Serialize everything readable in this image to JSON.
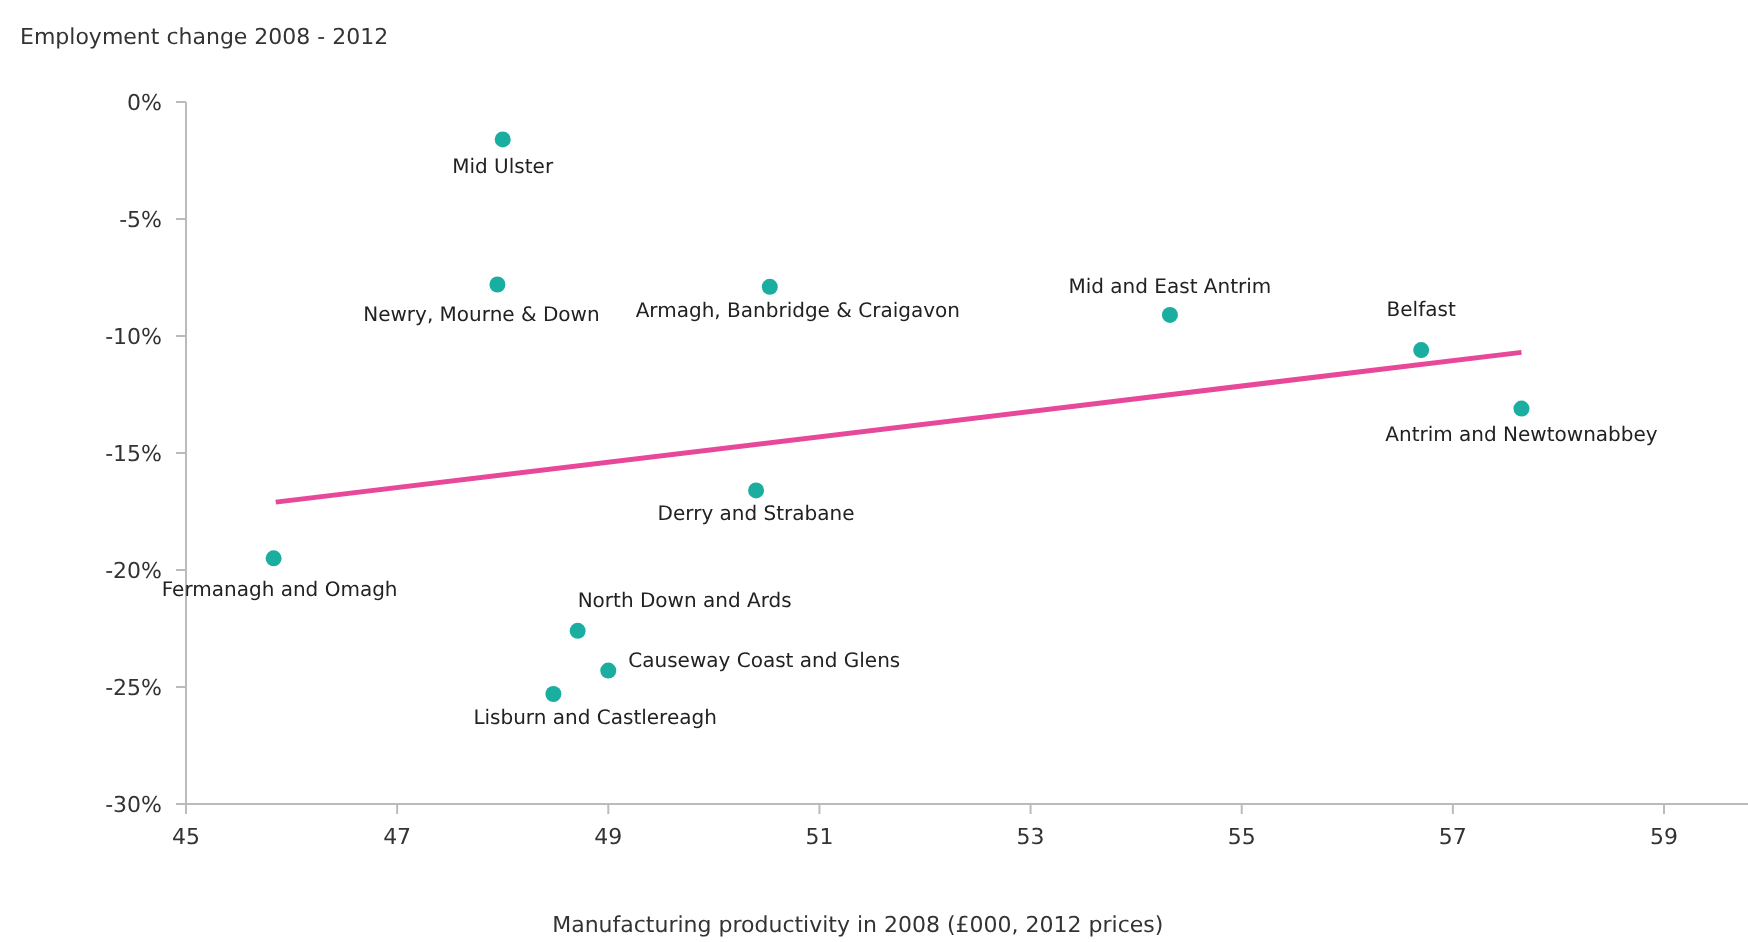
{
  "chart_data": {
    "type": "scatter",
    "ylabel": "Employment change 2008 - 2012",
    "xlabel": "Manufacturing productivity in 2008 (£000, 2012 prices)",
    "xlim": [
      45,
      60
    ],
    "xticks": [
      45,
      47,
      49,
      51,
      53,
      55,
      57,
      59
    ],
    "ylim": [
      -30,
      0
    ],
    "yticks": [
      {
        "value": 0,
        "label": "0%"
      },
      {
        "value": -5,
        "label": "-5%"
      },
      {
        "value": -10,
        "label": "-10%"
      },
      {
        "value": -15,
        "label": "-15%"
      },
      {
        "value": -20,
        "label": "-20%"
      },
      {
        "value": -25,
        "label": "-25%"
      },
      {
        "value": -30,
        "label": "-30%"
      }
    ],
    "grid": false,
    "series": [
      {
        "marker": "circle",
        "color": "#1aaea0",
        "x": [
          48.0,
          47.95,
          50.53,
          54.32,
          56.7,
          57.65,
          50.4,
          45.83,
          48.71,
          49.0,
          48.48
        ],
        "values": [
          -1.6,
          -7.8,
          -7.9,
          -9.1,
          -10.6,
          -13.1,
          -16.6,
          -19.5,
          -22.6,
          -24.3,
          -25.3
        ]
      },
      {
        "type": "line",
        "color": "#e8489a",
        "x": [
          45.85,
          57.65
        ],
        "values": [
          -17.1,
          -10.7
        ]
      }
    ],
    "annotations": [
      {
        "text": "Mid Ulster",
        "x": 48.0,
        "y": -1.6
      },
      {
        "text": "Newry, Mourne & Down",
        "x": 47.95,
        "y": -7.8
      },
      {
        "text": "Armagh, Banbridge & Craigavon",
        "x": 50.53,
        "y": -7.9
      },
      {
        "text": "Mid and East Antrim",
        "x": 54.32,
        "y": -9.1
      },
      {
        "text": "Belfast",
        "x": 56.7,
        "y": -10.6
      },
      {
        "text": "Antrim and Newtownabbey",
        "x": 57.65,
        "y": -13.1
      },
      {
        "text": "Derry and Strabane",
        "x": 50.4,
        "y": -16.6
      },
      {
        "text": "Fermanagh and Omagh",
        "x": 45.83,
        "y": -19.5
      },
      {
        "text": "North Down and Ards",
        "x": 48.71,
        "y": -22.6
      },
      {
        "text": "Causeway Coast and Glens",
        "x": 49.0,
        "y": -24.3
      },
      {
        "text": "Lisburn and Castlereagh",
        "x": 48.48,
        "y": -25.3
      }
    ]
  }
}
